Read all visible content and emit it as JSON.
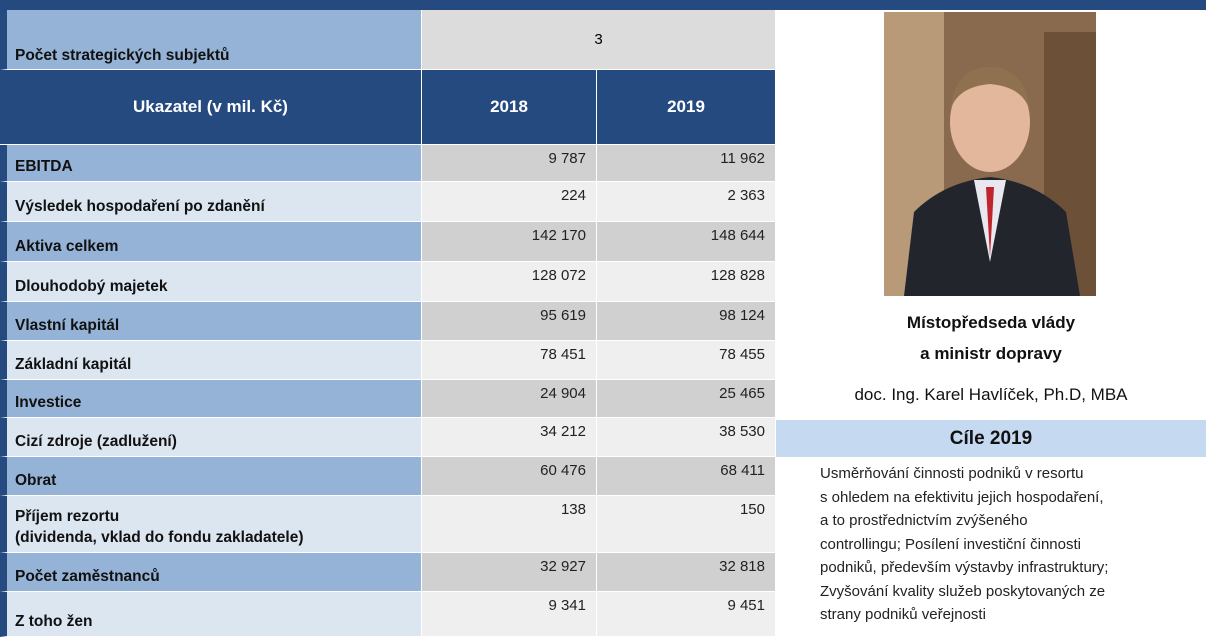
{
  "table": {
    "count_label": "Počet strategických subjektů",
    "count_value": "3",
    "header": [
      "Ukazatel (v mil. Kč)",
      "2018",
      "2019"
    ],
    "rows": [
      [
        "EBITDA",
        "9 787",
        "11 962"
      ],
      [
        "Výsledek hospodaření po zdanění",
        "224",
        "2 363"
      ],
      [
        "Aktiva celkem",
        "142 170",
        "148 644"
      ],
      [
        "Dlouhodobý majetek",
        "128 072",
        "128 828"
      ],
      [
        "Vlastní kapitál",
        "95 619",
        "98 124"
      ],
      [
        "Základní kapitál",
        "78 451",
        "78 455"
      ],
      [
        "Investice",
        "24 904",
        "25 465"
      ],
      [
        "Cizí zdroje (zadlužení)",
        "34 212",
        "38 530"
      ],
      [
        "Obrat",
        "60 476",
        "68 411"
      ],
      [
        "Příjem rezortu\n(dividenda, vklad do fondu zakladatele)",
        "138",
        "150"
      ],
      [
        "Počet zaměstnanců",
        "32 927",
        "32 818"
      ],
      [
        "Z toho žen",
        "9 341",
        "9 451"
      ]
    ]
  },
  "profile": {
    "role_lines": [
      "Místopředseda vlády",
      "a ministr dopravy"
    ],
    "name": "doc. Ing. Karel Havlíček, Ph.D, MBA",
    "goals_title": "Cíle 2019",
    "goals_lines": [
      "Usměrňování činnosti podniků v resortu",
      "s ohledem na efektivitu jejich hospodaření,",
      "a to prostřednictvím zvýšeného",
      "controllingu; Posílení investiční činnosti",
      "podniků, především výstavby infrastruktury;",
      "Zvyšování kvality služeb poskytovaných ze",
      "strany podniků veřejnosti"
    ]
  }
}
